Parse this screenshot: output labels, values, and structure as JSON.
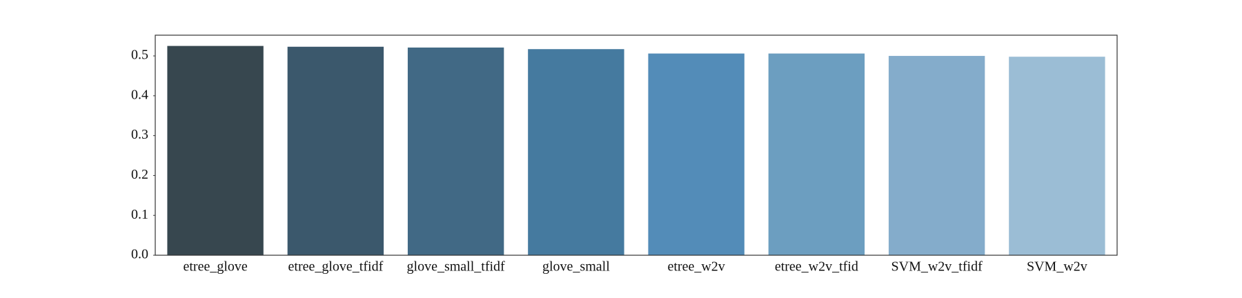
{
  "chart_data": {
    "type": "bar",
    "categories": [
      "etree_glove",
      "etree_glove_tfidf",
      "glove_small_tfidf",
      "glove_small",
      "etree_w2v",
      "etree_w2v_tfid",
      "SVM_w2v_tfidf",
      "SVM_w2v"
    ],
    "values": [
      0.525,
      0.523,
      0.521,
      0.517,
      0.506,
      0.506,
      0.5,
      0.498
    ],
    "colors": [
      "#37474f",
      "#3b586c",
      "#416985",
      "#457a9f",
      "#538cb8",
      "#6c9ec0",
      "#84accb",
      "#9bbdd5"
    ],
    "ylim": [
      0,
      0.552
    ],
    "yticks": [
      0.0,
      0.1,
      0.2,
      0.3,
      0.4,
      0.5
    ],
    "grid": false
  }
}
